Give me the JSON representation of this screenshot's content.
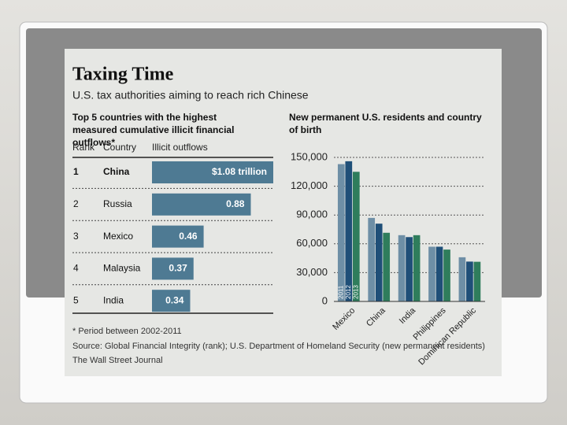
{
  "header": {
    "title": "Taxing Time",
    "subtitle": "U.S. tax authorities aiming to reach rich Chinese"
  },
  "chart_data": [
    {
      "type": "bar",
      "orientation": "horizontal",
      "title": "Top 5 countries with the highest measured cumulative illicit financial outflows*",
      "columns": [
        "Rank",
        "Country",
        "Illicit outflows"
      ],
      "ranks": [
        1,
        2,
        3,
        4,
        5
      ],
      "categories": [
        "China",
        "Russia",
        "Mexico",
        "Malaysia",
        "India"
      ],
      "values": [
        1.08,
        0.88,
        0.46,
        0.37,
        0.34
      ],
      "value_labels": [
        "$1.08 trillion",
        "0.88",
        "0.46",
        "0.37",
        "0.34"
      ],
      "color": "#4e7a93"
    },
    {
      "type": "bar",
      "title": "New permanent U.S. residents and country of birth",
      "categories": [
        "Mexico",
        "China",
        "India",
        "Philippines",
        "Dominican Republic"
      ],
      "series": [
        {
          "name": "2011",
          "color": "#6e8fa6",
          "values": [
            143000,
            87000,
            69000,
            57000,
            46000
          ]
        },
        {
          "name": "2012",
          "color": "#1f4f78",
          "values": [
            146000,
            81000,
            67000,
            57000,
            41500
          ]
        },
        {
          "name": "2013",
          "color": "#2f7d5c",
          "values": [
            135000,
            71500,
            69000,
            54000,
            41300
          ]
        }
      ],
      "ylim": [
        0,
        150000
      ],
      "yticks": [
        0,
        {
          "value": 30000,
          "label": "30,000"
        },
        {
          "value": 60000,
          "label": "60,000"
        },
        {
          "value": 90000,
          "label": "90,000"
        },
        {
          "value": 120000,
          "label": "120,000"
        },
        {
          "value": 150000,
          "label": "150,000"
        }
      ],
      "grid": true
    }
  ],
  "footer": {
    "note": "* Period between 2002-2011",
    "source": "Source: Global Financial Integrity (rank); U.S. Department of Homeland Security (new permanent residents)",
    "publisher": "The Wall Street Journal"
  }
}
